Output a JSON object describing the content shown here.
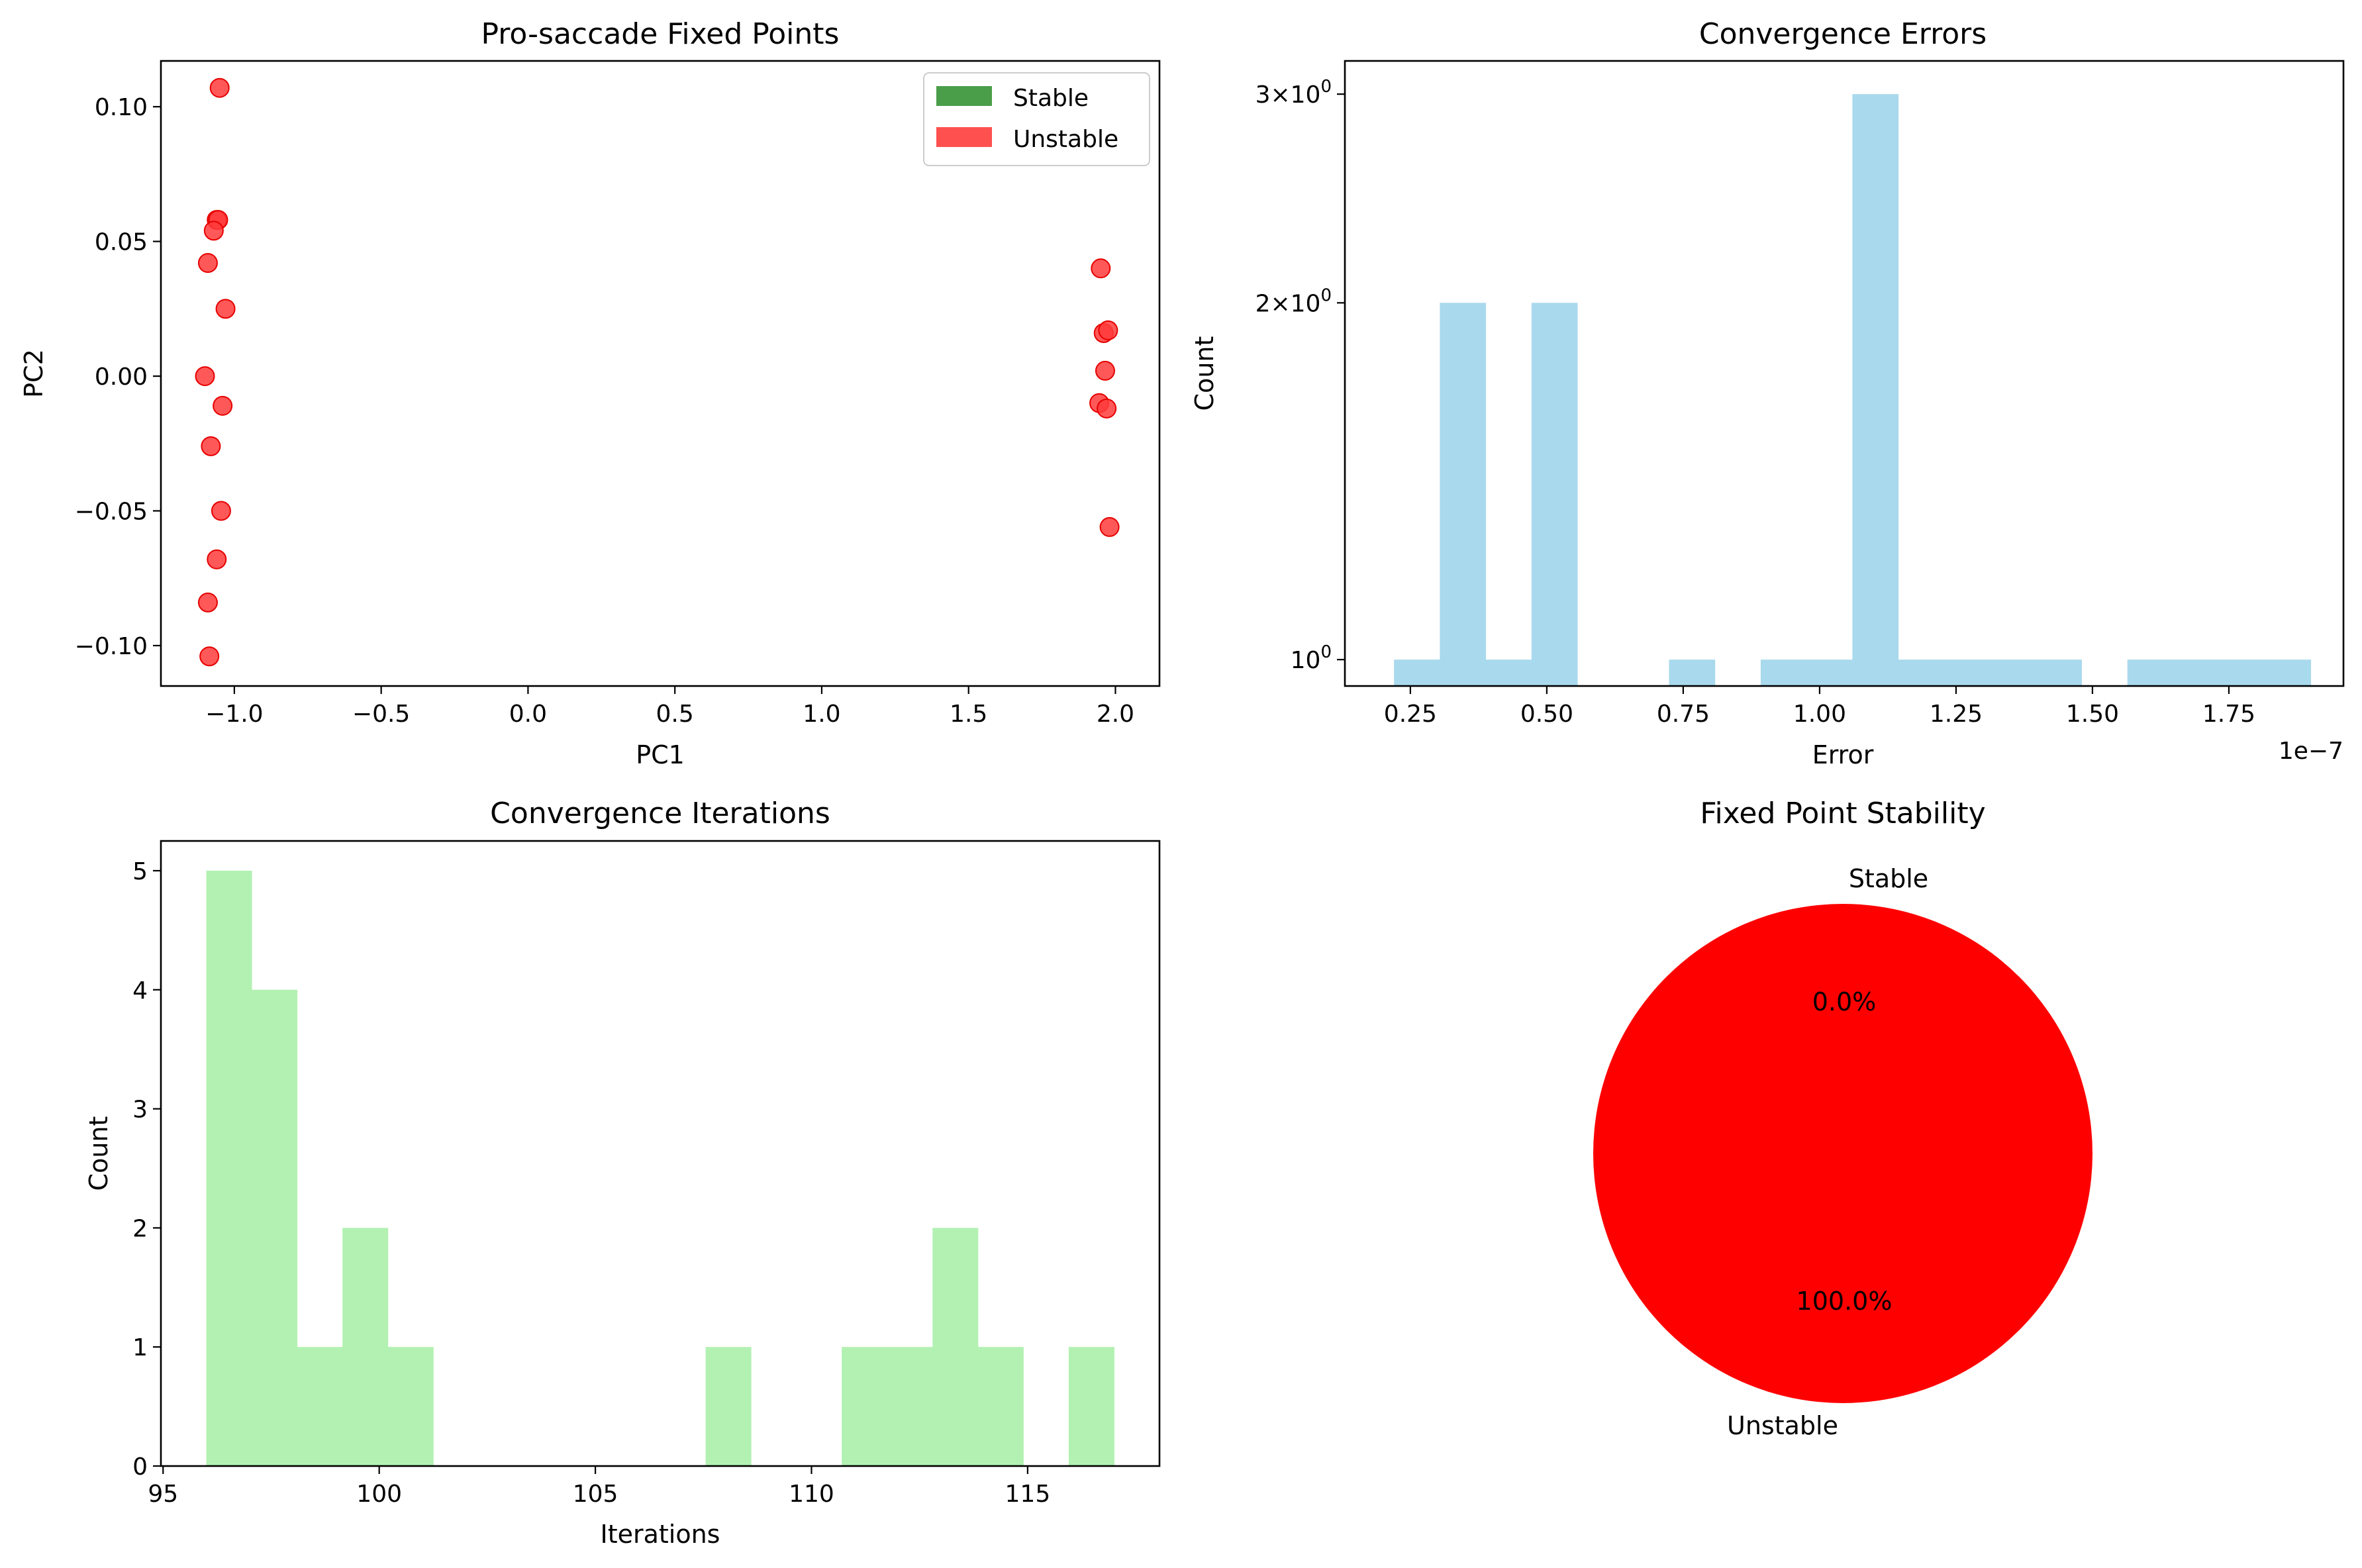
{
  "chart_data": [
    {
      "id": "pca",
      "type": "scatter",
      "title": "Pro-saccade Fixed Points",
      "xlabel": "PC1",
      "ylabel": "PC2",
      "xlim": [
        -1.25,
        2.15
      ],
      "ylim": [
        -0.115,
        0.117
      ],
      "xticks": [
        -1.0,
        -0.5,
        0.0,
        0.5,
        1.0,
        1.5,
        2.0
      ],
      "xtick_labels": [
        "−1.0",
        "−0.5",
        "0.0",
        "0.5",
        "1.0",
        "1.5",
        "2.0"
      ],
      "yticks": [
        -0.1,
        -0.05,
        0.0,
        0.05,
        0.1
      ],
      "ytick_labels": [
        "−0.10",
        "−0.05",
        "0.00",
        "0.05",
        "0.10"
      ],
      "legend": [
        {
          "label": "Stable",
          "color": "#4a9e4a"
        },
        {
          "label": "Unstable",
          "color": "#ff5050"
        }
      ],
      "legend_loc": "upper right",
      "point_color": "#ff3b3b",
      "points": [
        [
          -1.05,
          0.107
        ],
        [
          -1.06,
          0.058
        ],
        [
          -1.055,
          0.058
        ],
        [
          -1.07,
          0.054
        ],
        [
          -1.09,
          0.042
        ],
        [
          -1.03,
          0.025
        ],
        [
          -1.1,
          0.0
        ],
        [
          -1.04,
          -0.011
        ],
        [
          -1.08,
          -0.026
        ],
        [
          -1.045,
          -0.05
        ],
        [
          -1.06,
          -0.068
        ],
        [
          -1.09,
          -0.084
        ],
        [
          -1.085,
          -0.104
        ],
        [
          1.95,
          0.04
        ],
        [
          1.96,
          0.016
        ],
        [
          1.975,
          0.017
        ],
        [
          1.965,
          0.002
        ],
        [
          1.945,
          -0.01
        ],
        [
          1.97,
          -0.012
        ],
        [
          1.98,
          -0.056
        ]
      ]
    },
    {
      "id": "errors",
      "type": "bar",
      "title": "Convergence Errors",
      "xlabel": "Error",
      "ylabel": "Count",
      "yscale": "log",
      "offset_text": "1e−7",
      "xlim": [
        0.13,
        1.96
      ],
      "ylim": [
        0.95,
        3.2
      ],
      "xticks": [
        0.25,
        0.5,
        0.75,
        1.0,
        1.25,
        1.5,
        1.75
      ],
      "xtick_labels": [
        "0.25",
        "0.50",
        "0.75",
        "1.00",
        "1.25",
        "1.50",
        "1.75"
      ],
      "yticks": [
        1,
        2,
        3
      ],
      "ytick_labels": [
        {
          "base": "10",
          "exp": "0",
          "coef": ""
        },
        {
          "base": "10",
          "exp": "0",
          "coef": "2×"
        },
        {
          "base": "10",
          "exp": "0",
          "coef": "3×"
        }
      ],
      "bar_color": "#a9d9ed",
      "bins": [
        {
          "x0": 0.22,
          "x1": 0.304,
          "value": 1
        },
        {
          "x0": 0.304,
          "x1": 0.388,
          "value": 2
        },
        {
          "x0": 0.388,
          "x1": 0.472,
          "value": 1
        },
        {
          "x0": 0.472,
          "x1": 0.556,
          "value": 2
        },
        {
          "x0": 0.724,
          "x1": 0.808,
          "value": 1
        },
        {
          "x0": 0.892,
          "x1": 0.976,
          "value": 1
        },
        {
          "x0": 0.976,
          "x1": 1.06,
          "value": 1
        },
        {
          "x0": 1.06,
          "x1": 1.144,
          "value": 3
        },
        {
          "x0": 1.144,
          "x1": 1.228,
          "value": 1
        },
        {
          "x0": 1.228,
          "x1": 1.312,
          "value": 1
        },
        {
          "x0": 1.312,
          "x1": 1.396,
          "value": 1
        },
        {
          "x0": 1.396,
          "x1": 1.48,
          "value": 1
        },
        {
          "x0": 1.564,
          "x1": 1.648,
          "value": 1
        },
        {
          "x0": 1.648,
          "x1": 1.732,
          "value": 1
        },
        {
          "x0": 1.732,
          "x1": 1.816,
          "value": 1
        },
        {
          "x0": 1.816,
          "x1": 1.9,
          "value": 1
        }
      ]
    },
    {
      "id": "iters",
      "type": "bar",
      "title": "Convergence Iterations",
      "xlabel": "Iterations",
      "ylabel": "Count",
      "xlim": [
        94.95,
        118.05
      ],
      "ylim": [
        0,
        5.25
      ],
      "xticks": [
        95,
        100,
        105,
        110,
        115
      ],
      "xtick_labels": [
        "95",
        "100",
        "105",
        "110",
        "115"
      ],
      "yticks": [
        0,
        1,
        2,
        3,
        4,
        5
      ],
      "ytick_labels": [
        "0",
        "1",
        "2",
        "3",
        "4",
        "5"
      ],
      "bar_color": "#b2f1b2",
      "bins": [
        {
          "x0": 96.0,
          "x1": 97.05,
          "value": 5
        },
        {
          "x0": 97.05,
          "x1": 98.1,
          "value": 4
        },
        {
          "x0": 98.1,
          "x1": 99.15,
          "value": 1
        },
        {
          "x0": 99.15,
          "x1": 100.2,
          "value": 2
        },
        {
          "x0": 100.2,
          "x1": 101.25,
          "value": 1
        },
        {
          "x0": 107.55,
          "x1": 108.6,
          "value": 1
        },
        {
          "x0": 110.7,
          "x1": 111.75,
          "value": 1
        },
        {
          "x0": 111.75,
          "x1": 112.8,
          "value": 1
        },
        {
          "x0": 112.8,
          "x1": 113.85,
          "value": 2
        },
        {
          "x0": 113.85,
          "x1": 114.9,
          "value": 1
        },
        {
          "x0": 115.95,
          "x1": 117.0,
          "value": 1
        }
      ]
    },
    {
      "id": "pie",
      "type": "pie",
      "title": "Fixed Point Stability",
      "slices": [
        {
          "label": "Stable",
          "value": 0,
          "pct": "0.0%",
          "color": "#008000"
        },
        {
          "label": "Unstable",
          "value": 100,
          "pct": "100.0%",
          "color": "#ff0000"
        }
      ]
    }
  ]
}
